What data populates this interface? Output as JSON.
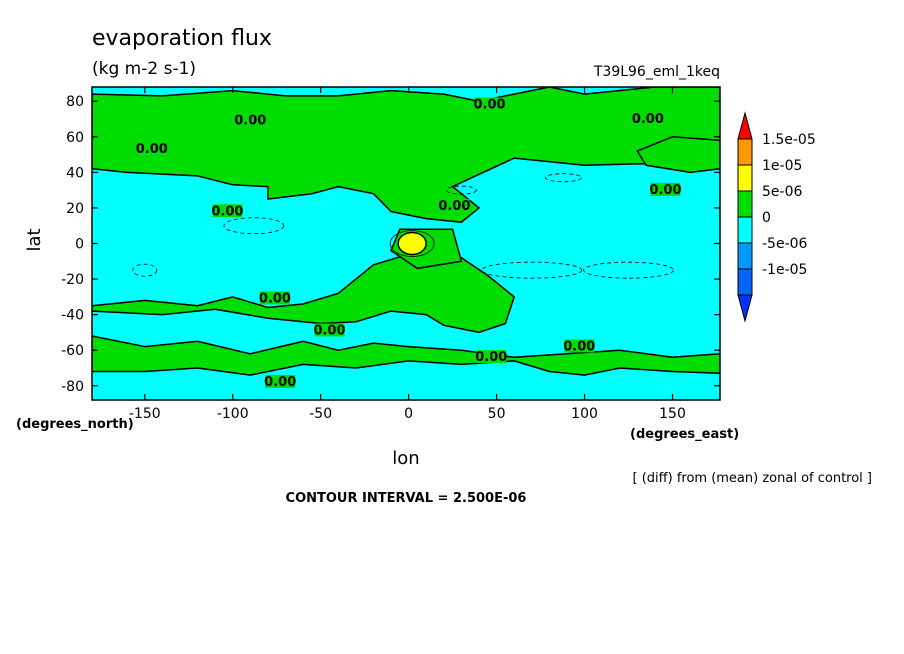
{
  "chart_data": {
    "type": "contour-map",
    "title": "evaporation flux",
    "units": "(kg m-2 s-1)",
    "run_label": "T39L96_eml_1keq",
    "xlabel": "lon",
    "ylabel": "lat",
    "x_unit_label": "(degrees_east)",
    "y_unit_label": "(degrees_north)",
    "note": "[ (diff) from (mean) zonal of control ]",
    "contour_interval_text": "CONTOUR INTERVAL = 2.500E-06",
    "xlim": [
      -180,
      177
    ],
    "ylim": [
      -88,
      88
    ],
    "x_ticks": [
      {
        "value": -150,
        "label": "-150"
      },
      {
        "value": -100,
        "label": "-100"
      },
      {
        "value": -50,
        "label": "-50"
      },
      {
        "value": 0,
        "label": "0"
      },
      {
        "value": 50,
        "label": "50"
      },
      {
        "value": 100,
        "label": "100"
      },
      {
        "value": 150,
        "label": "150"
      }
    ],
    "y_ticks": [
      {
        "value": 80,
        "label": "80"
      },
      {
        "value": 60,
        "label": "60"
      },
      {
        "value": 40,
        "label": "40"
      },
      {
        "value": 20,
        "label": "20"
      },
      {
        "value": 0,
        "label": "0"
      },
      {
        "value": -20,
        "label": "-20"
      },
      {
        "value": -40,
        "label": "-40"
      },
      {
        "value": -60,
        "label": "-60"
      },
      {
        "value": -80,
        "label": "-80"
      }
    ],
    "colorbar": {
      "levels": [
        {
          "label": "1.5e-05",
          "color": "#ff9900"
        },
        {
          "label": "1e-05",
          "color": "#ffff00"
        },
        {
          "label": "5e-06",
          "color": "#00dd00"
        },
        {
          "label": "0",
          "color": "#00ffff"
        },
        {
          "label": "-5e-06",
          "color": "#0099ff"
        },
        {
          "label": "-1e-05",
          "color": "#0066ff"
        }
      ],
      "top_arrow_color": "#ff0000",
      "bottom_arrow_color": "#0033ff"
    },
    "background_color": "#00ffff",
    "positive_color": "#00dd00",
    "contour_labels": [
      {
        "text": "0.00",
        "lon": -90,
        "lat": 68
      },
      {
        "text": "0.00",
        "lon": -146,
        "lat": 52
      },
      {
        "text": "0.00",
        "lon": 46,
        "lat": 77
      },
      {
        "text": "0.00",
        "lon": 136,
        "lat": 69
      },
      {
        "text": "0.00",
        "lon": 146,
        "lat": 29
      },
      {
        "text": "0.00",
        "lon": -103,
        "lat": 17
      },
      {
        "text": "0.00",
        "lon": 26,
        "lat": 20
      },
      {
        "text": "0.00",
        "lon": -76,
        "lat": -32
      },
      {
        "text": "0.00",
        "lon": -45,
        "lat": -50
      },
      {
        "text": "0.00",
        "lon": 47,
        "lat": -65
      },
      {
        "text": "0.00",
        "lon": -73,
        "lat": -79
      },
      {
        "text": "0.00",
        "lon": 97,
        "lat": -59
      }
    ],
    "positive_regions": [
      {
        "lon": [
          -180,
          -160,
          -120,
          -100,
          -80,
          -80,
          -55,
          -40,
          -20,
          -10,
          10,
          30,
          40,
          25,
          60,
          100,
          177,
          177,
          140,
          100,
          80,
          60,
          40,
          20,
          -10,
          -40,
          -70,
          -100,
          -140,
          -180
        ],
        "lat": [
          42,
          40,
          38,
          33,
          32,
          25,
          28,
          32,
          28,
          18,
          14,
          12,
          20,
          32,
          48,
          44,
          46,
          88,
          88,
          84,
          88,
          84,
          80,
          84,
          86,
          83,
          83,
          86,
          83,
          84
        ]
      },
      {
        "lon": [
          -180,
          -150,
          -120,
          -100,
          -80,
          -60,
          -40,
          -20,
          0,
          15,
          30,
          45,
          60,
          55,
          40,
          20,
          10,
          -10,
          -30,
          -50,
          -80,
          -110,
          -140,
          -180
        ],
        "lat": [
          -35,
          -32,
          -35,
          -30,
          -36,
          -34,
          -28,
          -12,
          -6,
          -4,
          -8,
          -18,
          -30,
          -45,
          -50,
          -46,
          -40,
          -38,
          -44,
          -45,
          -42,
          -37,
          -40,
          -38
        ]
      },
      {
        "lon": [
          -180,
          -150,
          -120,
          -90,
          -60,
          -40,
          -20,
          0,
          30,
          60,
          90,
          120,
          150,
          177,
          177,
          150,
          120,
          100,
          80,
          60,
          30,
          0,
          -30,
          -60,
          -90,
          -120,
          -150,
          -180
        ],
        "lat": [
          -52,
          -58,
          -55,
          -62,
          -55,
          -60,
          -56,
          -58,
          -60,
          -64,
          -62,
          -60,
          -64,
          -62,
          -73,
          -72,
          -70,
          -74,
          -72,
          -66,
          -68,
          -66,
          -70,
          -68,
          -74,
          -70,
          -72,
          -72
        ]
      },
      {
        "lon": [
          -5,
          25,
          30,
          5,
          -10
        ],
        "lat": [
          8,
          8,
          -10,
          -14,
          -4
        ]
      },
      {
        "lon": [
          135,
          160,
          177,
          177,
          150,
          130
        ],
        "lat": [
          44,
          40,
          42,
          58,
          60,
          52
        ]
      }
    ],
    "maximum": {
      "lon": 2,
      "lat": 0,
      "color": "#ffff00",
      "value_range": "5e-06 to 1e-05"
    }
  }
}
